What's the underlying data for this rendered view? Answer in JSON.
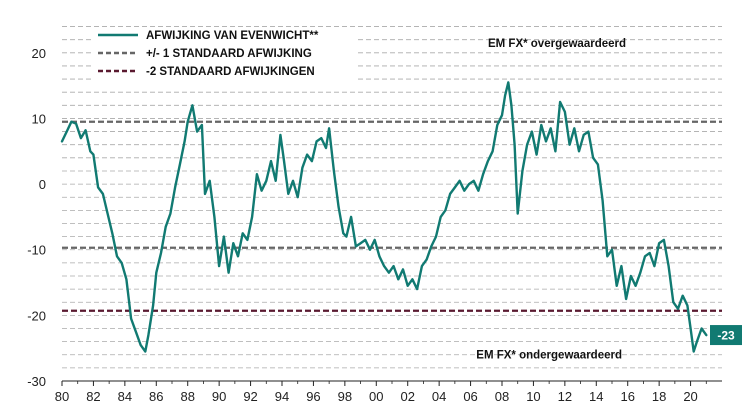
{
  "chart_data": {
    "type": "line",
    "title": "",
    "xlabel": "",
    "ylabel": "",
    "xlim": [
      1980,
      2022
    ],
    "ylim": [
      -30,
      25
    ],
    "x_ticks": [
      1980,
      1982,
      1984,
      1986,
      1988,
      1990,
      1992,
      1994,
      1996,
      1998,
      2000,
      2002,
      2004,
      2006,
      2008,
      2010,
      2012,
      2014,
      2016,
      2018,
      2020
    ],
    "x_tick_labels": [
      "80",
      "82",
      "84",
      "86",
      "88",
      "90",
      "92",
      "94",
      "96",
      "98",
      "00",
      "02",
      "04",
      "06",
      "08",
      "10",
      "12",
      "14",
      "16",
      "18",
      "20"
    ],
    "y_ticks": [
      20,
      10,
      0,
      -10,
      -20,
      -30
    ],
    "y_tick_labels": [
      "20",
      "10",
      "0",
      "-10",
      "-20",
      "-30"
    ],
    "grid": "horizontal-dashed",
    "legend_position": "top-left",
    "colors": {
      "line": "#117a72",
      "std1": "#666666",
      "std2": "#5a1a30",
      "grid": "#aaaaaa",
      "end_label_bg": "#117a72"
    },
    "reference_lines": [
      {
        "name": "+/- 1 STANDAARD AFWIJKING",
        "values": [
          9.5,
          -9.7
        ],
        "style": "dashed",
        "color": "#666666"
      },
      {
        "name": "-2 STANDAARD AFWIJKINGEN",
        "values": [
          -19.3
        ],
        "style": "dashed",
        "color": "#5a1a30"
      }
    ],
    "series": [
      {
        "name": "AFWIJKING VAN EVENWICHT**",
        "color": "#117a72",
        "x": [
          1980.0,
          1980.3,
          1980.6,
          1980.9,
          1981.2,
          1981.5,
          1981.8,
          1982.0,
          1982.3,
          1982.6,
          1982.9,
          1983.2,
          1983.5,
          1983.8,
          1984.1,
          1984.4,
          1984.7,
          1985.0,
          1985.3,
          1985.5,
          1985.8,
          1986.0,
          1986.3,
          1986.6,
          1986.9,
          1987.2,
          1987.5,
          1987.8,
          1988.0,
          1988.3,
          1988.6,
          1988.9,
          1989.1,
          1989.4,
          1989.7,
          1990.0,
          1990.3,
          1990.6,
          1990.9,
          1991.2,
          1991.5,
          1991.8,
          1992.1,
          1992.4,
          1992.7,
          1993.0,
          1993.3,
          1993.6,
          1993.9,
          1994.1,
          1994.4,
          1994.7,
          1995.0,
          1995.3,
          1995.6,
          1995.9,
          1996.2,
          1996.5,
          1996.8,
          1997.0,
          1997.3,
          1997.6,
          1997.9,
          1998.1,
          1998.4,
          1998.7,
          1999.0,
          1999.3,
          1999.6,
          1999.9,
          2000.2,
          2000.5,
          2000.8,
          2001.1,
          2001.4,
          2001.7,
          2002.0,
          2002.3,
          2002.6,
          2002.9,
          2003.2,
          2003.5,
          2003.8,
          2004.1,
          2004.4,
          2004.7,
          2005.0,
          2005.3,
          2005.6,
          2005.9,
          2006.2,
          2006.5,
          2006.8,
          2007.1,
          2007.4,
          2007.7,
          2008.0,
          2008.2,
          2008.4,
          2008.6,
          2008.8,
          2009.0,
          2009.3,
          2009.6,
          2009.9,
          2010.2,
          2010.5,
          2010.8,
          2011.1,
          2011.4,
          2011.7,
          2012.0,
          2012.3,
          2012.6,
          2012.9,
          2013.2,
          2013.5,
          2013.8,
          2014.1,
          2014.4,
          2014.7,
          2015.0,
          2015.3,
          2015.6,
          2015.9,
          2016.2,
          2016.5,
          2016.8,
          2017.1,
          2017.4,
          2017.7,
          2018.0,
          2018.3,
          2018.6,
          2018.9,
          2019.2,
          2019.5,
          2019.8,
          2020.0,
          2020.2,
          2020.4,
          2020.7,
          2021.0
        ],
        "values": [
          6.5,
          8.0,
          9.5,
          9.2,
          7.0,
          8.2,
          5.0,
          4.5,
          -0.5,
          -1.5,
          -4.5,
          -7.5,
          -11.0,
          -12.0,
          -14.5,
          -20.5,
          -22.5,
          -24.5,
          -25.5,
          -23.0,
          -18.5,
          -13.5,
          -10.5,
          -6.5,
          -4.5,
          -0.5,
          3.0,
          6.5,
          9.5,
          12.0,
          8.0,
          9.0,
          -1.5,
          0.5,
          -5.0,
          -12.5,
          -8.0,
          -13.5,
          -9.0,
          -11.0,
          -7.5,
          -8.5,
          -5.0,
          1.5,
          -1.0,
          0.5,
          3.5,
          0.5,
          7.5,
          4.0,
          -1.5,
          0.5,
          -2.0,
          2.5,
          4.5,
          3.5,
          6.5,
          7.0,
          5.5,
          8.5,
          2.0,
          -3.5,
          -7.5,
          -8.0,
          -5.0,
          -9.5,
          -9.0,
          -8.5,
          -10.0,
          -8.5,
          -11.0,
          -12.5,
          -13.5,
          -12.5,
          -14.5,
          -13.0,
          -15.5,
          -14.5,
          -16.0,
          -12.5,
          -11.5,
          -9.5,
          -8.0,
          -5.0,
          -4.0,
          -1.5,
          -0.5,
          0.5,
          -1.0,
          0.0,
          0.5,
          -1.0,
          1.5,
          3.5,
          5.0,
          9.0,
          10.5,
          13.5,
          15.5,
          12.0,
          6.0,
          -4.5,
          2.0,
          6.0,
          8.0,
          4.5,
          9.0,
          6.5,
          8.5,
          5.0,
          12.5,
          11.0,
          6.0,
          8.5,
          5.0,
          7.5,
          8.0,
          4.0,
          3.0,
          -2.5,
          -11.0,
          -10.0,
          -15.5,
          -12.5,
          -17.5,
          -14.0,
          -15.5,
          -13.5,
          -11.0,
          -10.5,
          -12.5,
          -9.0,
          -8.5,
          -12.5,
          -18.0,
          -19.0,
          -17.0,
          -18.5,
          -22.0,
          -25.5,
          -24.0,
          -22.0,
          -23.0
        ]
      }
    ],
    "annotations": [
      {
        "text": "EM FX* overgewaardeerd",
        "x": 2011.5,
        "y": 21.5
      },
      {
        "text": "EM FX* ondergewaardeerd",
        "x": 2011.0,
        "y": -26.0
      }
    ],
    "end_label": {
      "text": "-23",
      "x": 2021.0,
      "y": -23
    },
    "legend": [
      {
        "label": "AFWIJKING VAN EVENWICHT**",
        "style": "solid",
        "color": "#117a72"
      },
      {
        "label": "+/- 1 STANDAARD AFWIJKING",
        "style": "dashed",
        "color": "#666666"
      },
      {
        "label": "-2 STANDAARD AFWIJKINGEN",
        "style": "dashed",
        "color": "#5a1a30"
      }
    ]
  }
}
